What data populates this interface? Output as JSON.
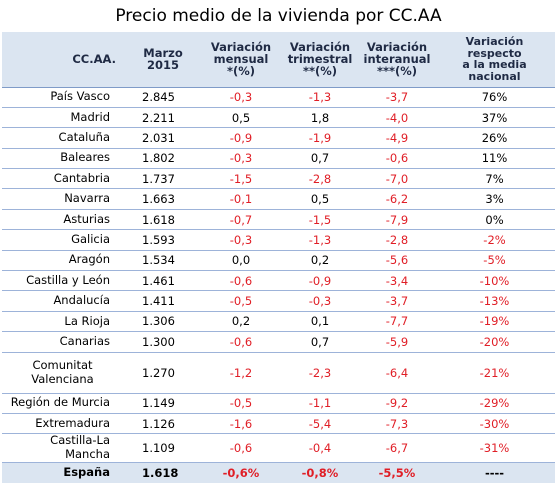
{
  "title": "Precio medio de la vivienda por CC.AA",
  "headers": {
    "region": "CC.AA.",
    "price": "Marzo 2015",
    "monthly_1": "Variación",
    "monthly_2": "mensual",
    "monthly_3": "*(%)",
    "quarterly_1": "Variación",
    "quarterly_2": "trimestral",
    "quarterly_3": "**(%)",
    "annual_1": "Variación",
    "annual_2": "interanual",
    "annual_3": "***(%)",
    "national_1": "Variación respecto",
    "national_2": "a la media nacional"
  },
  "rows": [
    {
      "region": "País Vasco",
      "price": "2.845",
      "monthly": "-0,3",
      "quarterly": "-1,3",
      "annual": "-3,7",
      "national": "76%"
    },
    {
      "region": "Madrid",
      "price": "2.211",
      "monthly": "0,5",
      "quarterly": "1,8",
      "annual": "-4,0",
      "national": "37%"
    },
    {
      "region": "Cataluña",
      "price": "2.031",
      "monthly": "-0,9",
      "quarterly": "-1,9",
      "annual": "-4,9",
      "national": "26%"
    },
    {
      "region": "Baleares",
      "price": "1.802",
      "monthly": "-0,3",
      "quarterly": "0,7",
      "annual": "-0,6",
      "national": "11%"
    },
    {
      "region": "Cantabria",
      "price": "1.737",
      "monthly": "-1,5",
      "quarterly": "-2,8",
      "annual": "-7,0",
      "national": "7%"
    },
    {
      "region": "Navarra",
      "price": "1.663",
      "monthly": "-0,1",
      "quarterly": "0,5",
      "annual": "-6,2",
      "national": "3%"
    },
    {
      "region": "Asturias",
      "price": "1.618",
      "monthly": "-0,7",
      "quarterly": "-1,5",
      "annual": "-7,9",
      "national": "0%"
    },
    {
      "region": "Galicia",
      "price": "1.593",
      "monthly": "-0,3",
      "quarterly": "-1,3",
      "annual": "-2,8",
      "national": "-2%"
    },
    {
      "region": "Aragón",
      "price": "1.534",
      "monthly": "0,0",
      "quarterly": "0,2",
      "annual": "-5,6",
      "national": "-5%"
    },
    {
      "region": "Castilla y León",
      "price": "1.461",
      "monthly": "-0,6",
      "quarterly": "-0,9",
      "annual": "-3,4",
      "national": "-10%"
    },
    {
      "region": "Andalucía",
      "price": "1.411",
      "monthly": "-0,5",
      "quarterly": "-0,3",
      "annual": "-3,7",
      "national": "-13%"
    },
    {
      "region": "La Rioja",
      "price": "1.306",
      "monthly": "0,2",
      "quarterly": "0,1",
      "annual": "-7,7",
      "national": "-19%"
    },
    {
      "region": "Canarias",
      "price": "1.300",
      "monthly": "-0,6",
      "quarterly": "0,7",
      "annual": "-5,9",
      "national": "-20%"
    },
    {
      "region": "Comunitat Valenciana",
      "region_line1": "Comunitat",
      "region_line2": "Valenciana",
      "price": "1.270",
      "monthly": "-1,2",
      "quarterly": "-2,3",
      "annual": "-6,4",
      "national": "-21%",
      "tall": true
    },
    {
      "region": "Región de Murcia",
      "price": "1.149",
      "monthly": "-0,5",
      "quarterly": "-1,1",
      "annual": "-9,2",
      "national": "-29%"
    },
    {
      "region": "Extremadura",
      "price": "1.126",
      "monthly": "-1,6",
      "quarterly": "-5,4",
      "annual": "-7,3",
      "national": "-30%"
    },
    {
      "region": "Castilla-La Mancha",
      "price": "1.109",
      "monthly": "-0,6",
      "quarterly": "-0,4",
      "annual": "-6,7",
      "national": "-31%"
    }
  ],
  "total": {
    "region": "España",
    "price": "1.618",
    "monthly": "-0,6%",
    "quarterly": "-0,8%",
    "annual": "-5,5%",
    "national": "----"
  },
  "colors": {
    "header_bg": "#dbe5f1",
    "negative": "#e01e26",
    "positive": "#000000",
    "row_border": "#9db3d9"
  }
}
